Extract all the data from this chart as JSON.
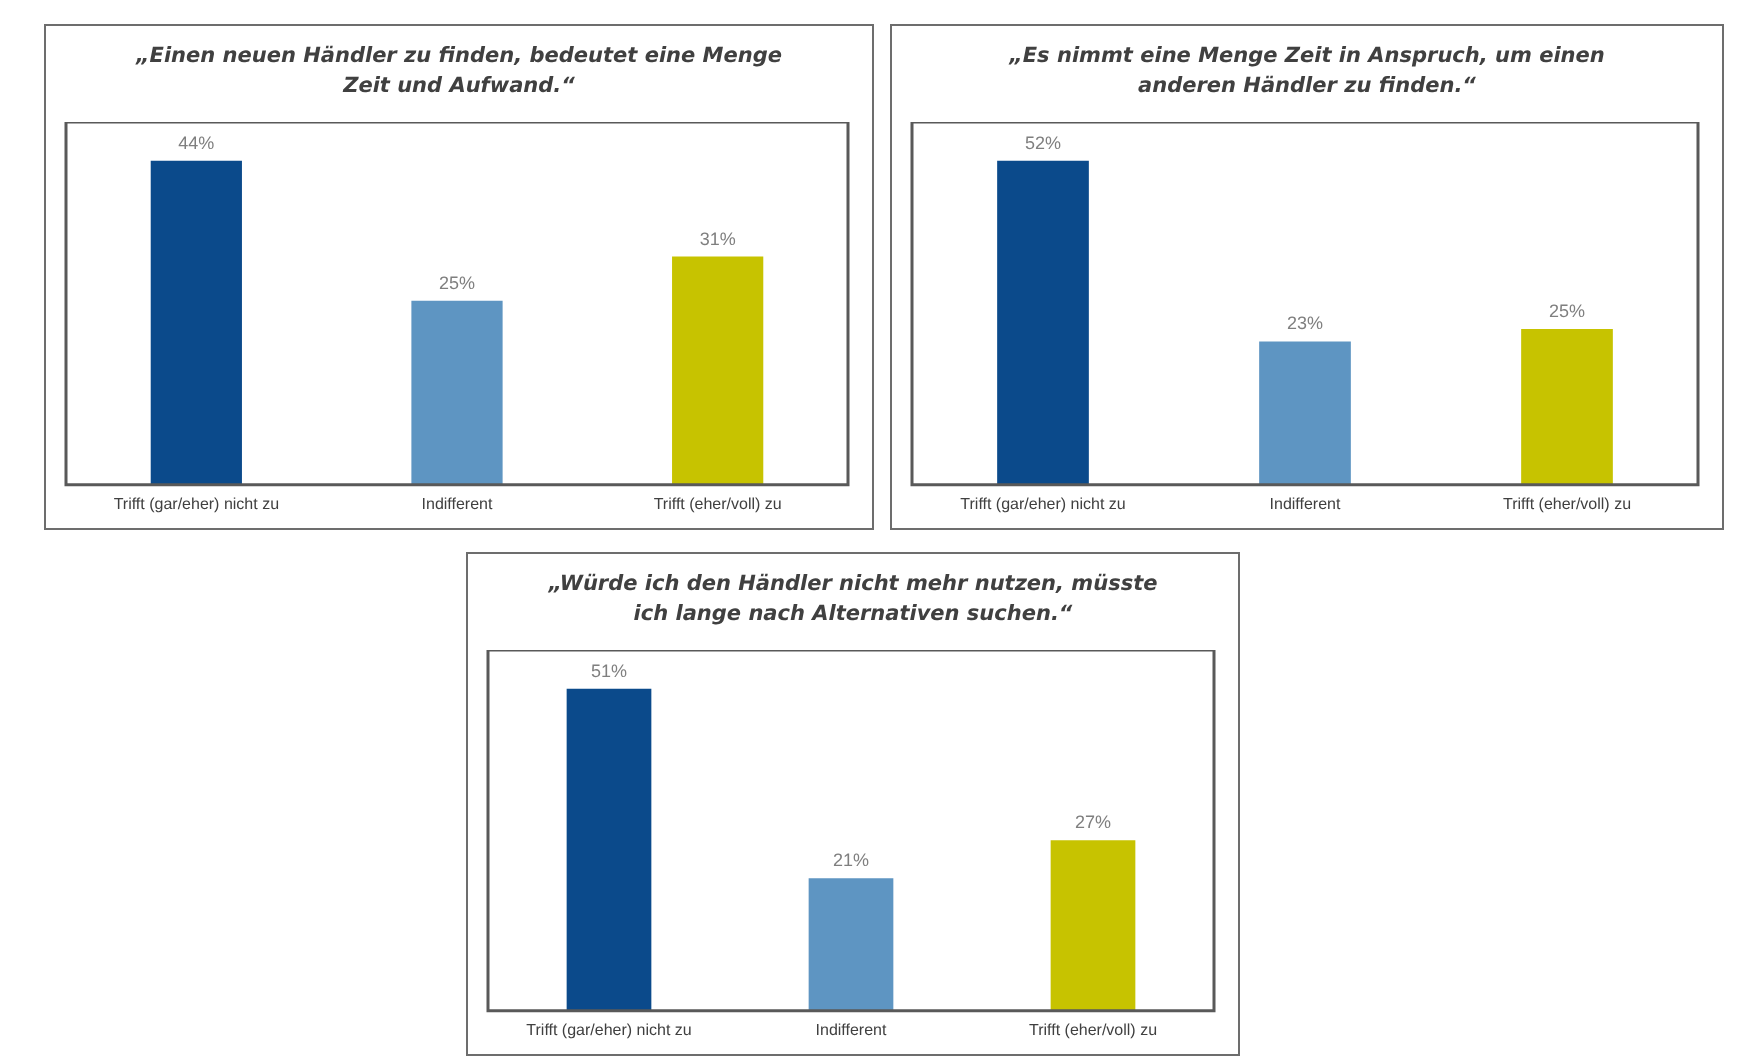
{
  "chart_data": [
    {
      "type": "bar",
      "title": "„Einen neuen Händler zu finden, bedeutet eine Menge Zeit und Aufwand.“",
      "categories": [
        "Trifft (gar/eher) nicht zu",
        "Indifferent",
        "Trifft (eher/voll) zu"
      ],
      "values": [
        44,
        25,
        31
      ],
      "value_labels": [
        "44%",
        "25%",
        "31%"
      ],
      "colors": [
        "#0b4a8b",
        "#5e95c2",
        "#c7c300"
      ],
      "tick_labels": "x",
      "grid": false,
      "legend": false
    },
    {
      "type": "bar",
      "title": "„Es nimmt eine Menge Zeit in Anspruch, um einen anderen Händler zu finden.“",
      "categories": [
        "Trifft (gar/eher) nicht zu",
        "Indifferent",
        "Trifft (eher/voll) zu"
      ],
      "values": [
        52,
        23,
        25
      ],
      "value_labels": [
        "52%",
        "23%",
        "25%"
      ],
      "colors": [
        "#0b4a8b",
        "#5e95c2",
        "#c7c300"
      ],
      "tick_labels": "x",
      "grid": false,
      "legend": false
    },
    {
      "type": "bar",
      "title": "„Würde ich den Händler nicht mehr nutzen, müsste ich lange nach Alternativen suchen.“",
      "categories": [
        "Trifft (gar/eher) nicht zu",
        "Indifferent",
        "Trifft (eher/voll) zu"
      ],
      "values": [
        51,
        21,
        27
      ],
      "value_labels": [
        "51%",
        "21%",
        "27%"
      ],
      "colors": [
        "#0b4a8b",
        "#5e95c2",
        "#c7c300"
      ],
      "tick_labels": "x",
      "grid": false,
      "legend": false
    }
  ]
}
